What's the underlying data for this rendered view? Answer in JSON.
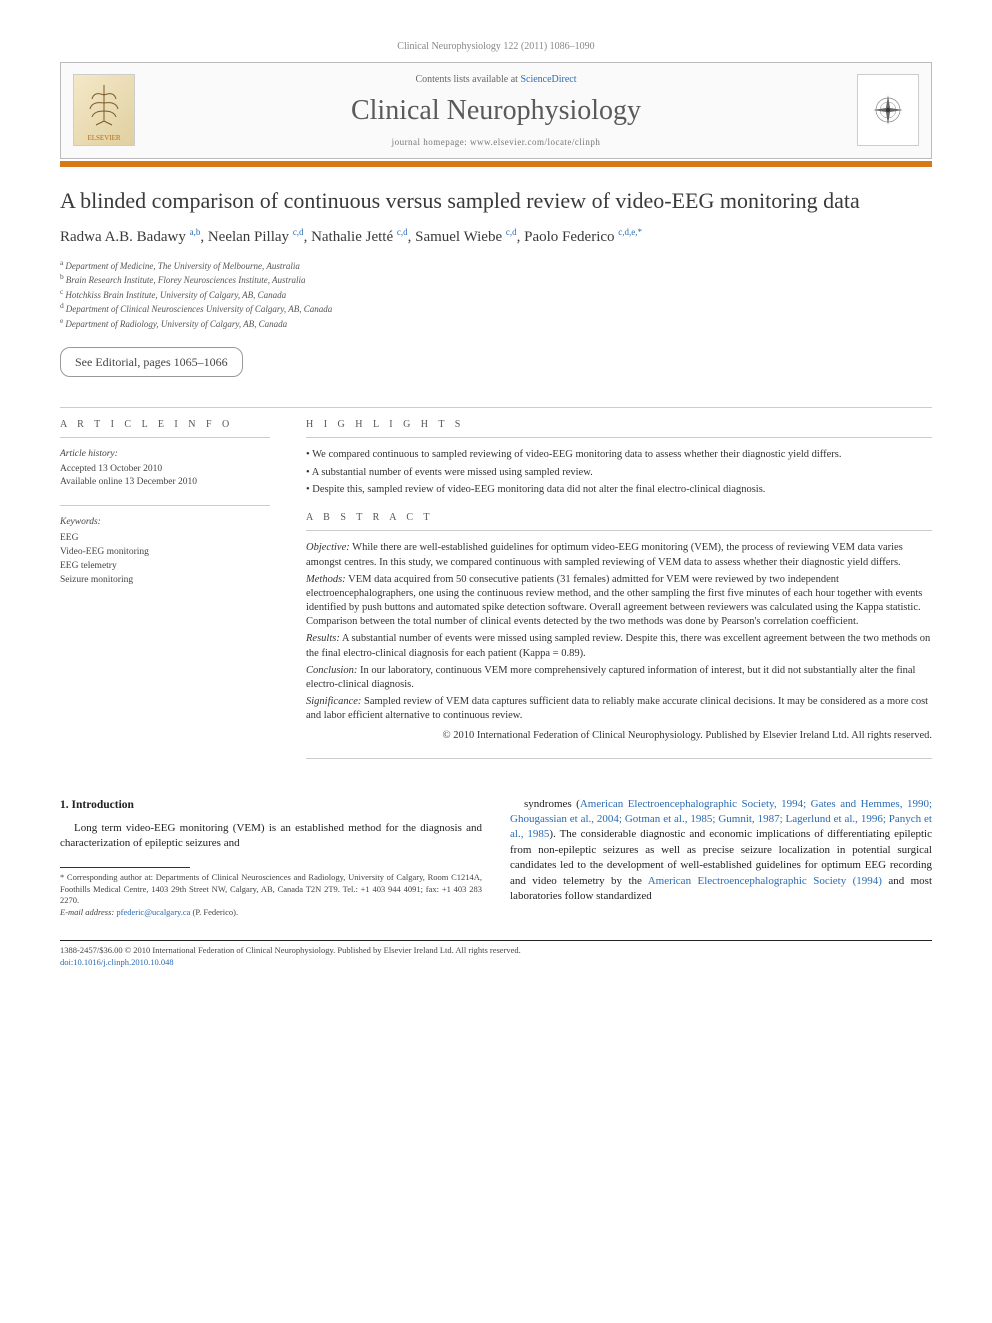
{
  "journal_ref": "Clinical Neurophysiology 122 (2011) 1086–1090",
  "header": {
    "publisher": "ELSEVIER",
    "contents_prefix": "Contents lists available at ",
    "contents_link": "ScienceDirect",
    "journal_name": "Clinical Neurophysiology",
    "homepage_prefix": "journal homepage: ",
    "homepage_url": "www.elsevier.com/locate/clinph"
  },
  "title": "A blinded comparison of continuous versus sampled review of video-EEG monitoring data",
  "authors_html": "Radwa A.B. Badawy <sup>a,b</sup>, Neelan Pillay <sup>c,d</sup>, Nathalie Jetté <sup>c,d</sup>, Samuel Wiebe <sup>c,d</sup>, Paolo Federico <sup>c,d,e,*</sup>",
  "affiliations": [
    {
      "sup": "a",
      "text": "Department of Medicine, The University of Melbourne, Australia"
    },
    {
      "sup": "b",
      "text": "Brain Research Institute, Florey Neurosciences Institute, Australia"
    },
    {
      "sup": "c",
      "text": "Hotchkiss Brain Institute, University of Calgary, AB, Canada"
    },
    {
      "sup": "d",
      "text": "Department of Clinical Neurosciences University of Calgary, AB, Canada"
    },
    {
      "sup": "e",
      "text": "Department of Radiology, University of Calgary, AB, Canada"
    }
  ],
  "editorial_notice": "See Editorial, pages 1065–1066",
  "article_info": {
    "label": "A R T I C L E   I N F O",
    "history_title": "Article history:",
    "accepted": "Accepted 13 October 2010",
    "online": "Available online 13 December 2010",
    "keywords_title": "Keywords:",
    "keywords": [
      "EEG",
      "Video-EEG monitoring",
      "EEG telemetry",
      "Seizure monitoring"
    ]
  },
  "highlights": {
    "label": "H I G H L I G H T S",
    "items": [
      "• We compared continuous to sampled reviewing of video-EEG monitoring data to assess whether their diagnostic yield differs.",
      "• A substantial number of events were missed using sampled review.",
      "• Despite this, sampled review of video-EEG monitoring data did not alter the final electro-clinical diagnosis."
    ]
  },
  "abstract": {
    "label": "A B S T R A C T",
    "items": [
      {
        "label": "Objective:",
        "text": " While there are well-established guidelines for optimum video-EEG monitoring (VEM), the process of reviewing VEM data varies amongst centres. In this study, we compared continuous with sampled reviewing of VEM data to assess whether their diagnostic yield differs."
      },
      {
        "label": "Methods:",
        "text": " VEM data acquired from 50 consecutive patients (31 females) admitted for VEM were reviewed by two independent electroencephalographers, one using the continuous review method, and the other sampling the first five minutes of each hour together with events identified by push buttons and automated spike detection software. Overall agreement between reviewers was calculated using the Kappa statistic. Comparison between the total number of clinical events detected by the two methods was done by Pearson's correlation coefficient."
      },
      {
        "label": "Results:",
        "text": " A substantial number of events were missed using sampled review. Despite this, there was excellent agreement between the two methods on the final electro-clinical diagnosis for each patient (Kappa = 0.89)."
      },
      {
        "label": "Conclusion:",
        "text": " In our laboratory, continuous VEM more comprehensively captured information of interest, but it did not substantially alter the final electro-clinical diagnosis."
      },
      {
        "label": "Significance:",
        "text": " Sampled review of VEM data captures sufficient data to reliably make accurate clinical decisions. It may be considered as a more cost and labor efficient alternative to continuous review."
      }
    ],
    "copyright": "© 2010 International Federation of Clinical Neurophysiology. Published by Elsevier Ireland Ltd. All rights reserved."
  },
  "intro": {
    "heading": "1. Introduction",
    "left_para_start": "Long term video-EEG monitoring (VEM) is an established method for the diagnosis and characterization of epileptic seizures and",
    "right_para_prefix": "syndromes (",
    "right_refs1": "American Electroencephalographic Society, 1994; Gates and Hemmes, 1990; Ghougassian et al., 2004; Gotman et al., 1985; Gumnit, 1987; Lagerlund et al., 1996; Panych et al., 1985",
    "right_para_mid": "). The considerable diagnostic and economic implications of differentiating epileptic from non-epileptic seizures as well as precise seizure localization in potential surgical candidates led to the development of well-established guidelines for optimum EEG recording and video telemetry by the ",
    "right_refs2": "American Electroencephalographic Society (1994)",
    "right_para_end": " and most laboratories follow standardized"
  },
  "footnote": {
    "corr_label": "* Corresponding author at:",
    "corr_text": " Departments of Clinical Neurosciences and Radiology, University of Calgary, Room C1214A, Foothills Medical Centre, 1403 29th Street NW, Calgary, AB, Canada T2N 2T9. Tel.: +1 403 944 4091; fax: +1 403 283 2270.",
    "email_label": "E-mail address:",
    "email": " pfederic@ucalgary.ca ",
    "email_who": "(P. Federico)."
  },
  "footer": {
    "line1": "1388-2457/$36.00 © 2010 International Federation of Clinical Neurophysiology. Published by Elsevier Ireland Ltd. All rights reserved.",
    "doi": "doi:10.1016/j.clinph.2010.10.048"
  }
}
